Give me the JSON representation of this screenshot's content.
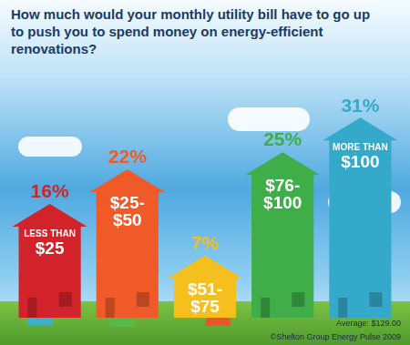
{
  "chart_data": {
    "type": "bar",
    "title": "How much would your monthly utility bill have to go up to push you to spend money on energy-efficient renovations?",
    "categories": [
      "LESS THAN $25",
      "$25-$50",
      "$51-$75",
      "$76-$100",
      "MORE THAN $100"
    ],
    "values": [
      16,
      22,
      7,
      25,
      31
    ],
    "value_labels": [
      "16%",
      "22%",
      "7%",
      "25%",
      "31%"
    ],
    "colors": [
      "#d2232a",
      "#f05a28",
      "#f5c01e",
      "#3fae49",
      "#35a9c9"
    ],
    "data_labels": true,
    "tick_labels": false,
    "grid": false,
    "annotations": [
      "Average: $129.00",
      "©Shelton Group Energy Pulse 2009"
    ]
  }
}
